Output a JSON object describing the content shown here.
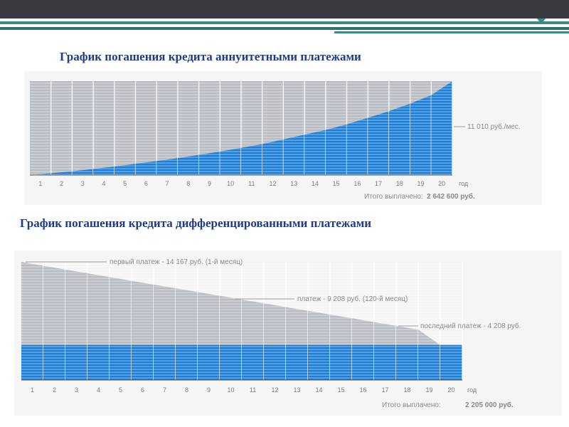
{
  "slide": {
    "title_annuity": "График погашения кредита аннуитетными платежами",
    "title_diff": "График погашения кредита дифференцированными платежами"
  },
  "colors": {
    "blue": "#1f7fd6",
    "gray": "#b9bcc2",
    "heading": "#1f3a8a"
  },
  "chart_data": [
    {
      "type": "area",
      "name": "annuity",
      "x": [
        "1",
        "2",
        "3",
        "4",
        "5",
        "6",
        "7",
        "8",
        "9",
        "10",
        "11",
        "12",
        "13",
        "14",
        "15",
        "16",
        "17",
        "18",
        "19",
        "20"
      ],
      "x_unit": "год",
      "series": [
        {
          "values": [
            0.02,
            0.04,
            0.065,
            0.09,
            0.12,
            0.15,
            0.18,
            0.215,
            0.25,
            0.29,
            0.33,
            0.38,
            0.43,
            0.48,
            0.54,
            0.61,
            0.68,
            0.76,
            0.85,
            1.0
          ]
        }
      ],
      "annotation": "11 010 руб./мес.",
      "total_label": "Итого выплачено:",
      "total_value": "2 642 600 руб.",
      "ylim": [
        0,
        1
      ]
    },
    {
      "type": "area",
      "name": "differentiated",
      "x": [
        "1",
        "2",
        "3",
        "4",
        "5",
        "6",
        "7",
        "8",
        "9",
        "10",
        "11",
        "12",
        "13",
        "14",
        "15",
        "16",
        "17",
        "18",
        "19",
        "20"
      ],
      "x_unit": "год",
      "series": [
        {
          "values": [
            14167,
            13700,
            13250,
            12800,
            12350,
            11900,
            11450,
            11000,
            10550,
            10100,
            9650,
            9208,
            8750,
            8300,
            7850,
            7400,
            6950,
            6500,
            6050,
            4208
          ]
        },
        {
          "values": [
            4208,
            4208,
            4208,
            4208,
            4208,
            4208,
            4208,
            4208,
            4208,
            4208,
            4208,
            4208,
            4208,
            4208,
            4208,
            4208,
            4208,
            4208,
            4208,
            4208
          ]
        }
      ],
      "annotations": [
        "первый платеж - 14 167 руб. (1-й месяц)",
        "платеж - 9 208 руб. (120-й месяц)",
        "последний платеж - 4 208 руб."
      ],
      "total_label": "Итого выплачено:",
      "total_value": "2 205 000 руб.",
      "ylim": [
        0,
        14167
      ]
    }
  ]
}
